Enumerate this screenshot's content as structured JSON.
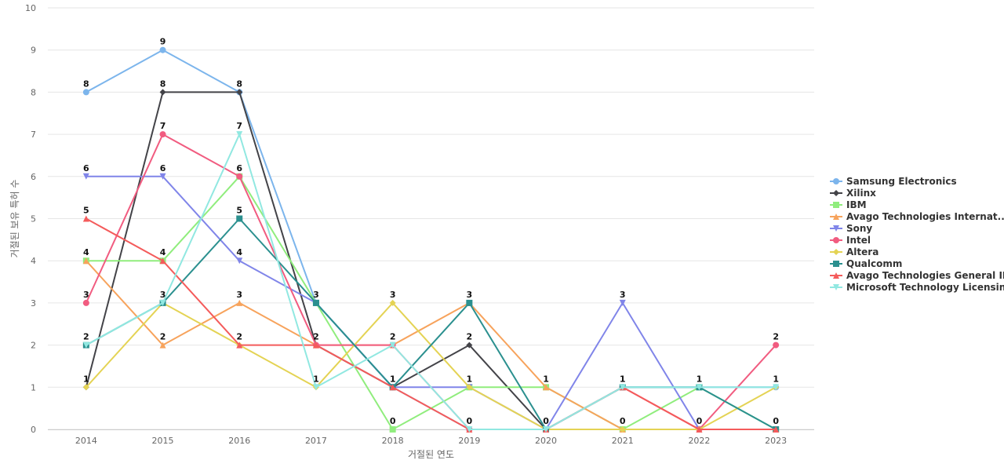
{
  "chart_data": {
    "type": "line",
    "xlabel": "거절된 연도",
    "ylabel": "거절된 보유 특허 수",
    "ylim": [
      0,
      10
    ],
    "yticks": [
      0,
      1,
      2,
      3,
      4,
      5,
      6,
      7,
      8,
      9,
      10
    ],
    "grid": true,
    "legend_position": "right",
    "x": [
      "2014",
      "2015",
      "2016",
      "2017",
      "2018",
      "2019",
      "2020",
      "2021",
      "2022",
      "2023"
    ],
    "series": [
      {
        "name": "Samsung Electronics",
        "legend_label": "Samsung Electronics",
        "color": "#7cb5ec",
        "marker": "circle",
        "values": [
          8,
          9,
          8,
          3,
          1,
          0,
          0,
          1,
          1,
          1
        ]
      },
      {
        "name": "Xilinx",
        "legend_label": "Xilinx",
        "color": "#434348",
        "marker": "diamond",
        "values": [
          1,
          8,
          8,
          2,
          1,
          2,
          0,
          0,
          0,
          0
        ]
      },
      {
        "name": "IBM",
        "legend_label": "IBM",
        "color": "#90ed7d",
        "marker": "square",
        "values": [
          4,
          4,
          6,
          3,
          0,
          1,
          1,
          0,
          1,
          0
        ]
      },
      {
        "name": "Avago Technologies International Sales",
        "legend_label": "Avago Technologies Internat...",
        "color": "#f7a35c",
        "marker": "triangle",
        "values": [
          4,
          2,
          3,
          2,
          2,
          3,
          1,
          0,
          0,
          0
        ]
      },
      {
        "name": "Sony",
        "legend_label": "Sony",
        "color": "#8085e9",
        "marker": "triangle-down",
        "values": [
          6,
          6,
          4,
          3,
          1,
          1,
          0,
          3,
          0,
          0
        ]
      },
      {
        "name": "Intel",
        "legend_label": "Intel",
        "color": "#f15c80",
        "marker": "circle",
        "values": [
          3,
          7,
          6,
          2,
          2,
          0,
          0,
          1,
          0,
          2
        ]
      },
      {
        "name": "Altera",
        "legend_label": "Altera",
        "color": "#e4d354",
        "marker": "diamond",
        "values": [
          1,
          3,
          2,
          1,
          3,
          1,
          0,
          0,
          0,
          1
        ]
      },
      {
        "name": "Qualcomm",
        "legend_label": "Qualcomm",
        "color": "#2b908f",
        "marker": "square",
        "values": [
          2,
          3,
          5,
          3,
          1,
          3,
          0,
          1,
          1,
          0
        ]
      },
      {
        "name": "Avago Technologies General IP",
        "legend_label": "Avago Technologies General IP",
        "color": "#f45b5b",
        "marker": "triangle",
        "values": [
          5,
          4,
          2,
          2,
          1,
          0,
          0,
          1,
          0,
          0
        ]
      },
      {
        "name": "Microsoft Technology Licensing",
        "legend_label": "Microsoft Technology Licensing",
        "color": "#91e8e1",
        "marker": "triangle-down",
        "values": [
          2,
          3,
          7,
          1,
          2,
          0,
          0,
          1,
          1,
          1
        ]
      }
    ],
    "data_labels": [
      {
        "x": "2014",
        "labels": [
          8,
          6,
          5,
          4,
          3,
          2,
          1
        ]
      },
      {
        "x": "2015",
        "labels": [
          9,
          8,
          7,
          6,
          4,
          3,
          2
        ]
      },
      {
        "x": "2016",
        "labels": [
          8,
          7,
          6,
          5,
          4,
          3,
          2
        ]
      },
      {
        "x": "2017",
        "labels": [
          3,
          2,
          1
        ]
      },
      {
        "x": "2018",
        "labels": [
          3,
          2,
          1,
          0
        ]
      },
      {
        "x": "2019",
        "labels": [
          3,
          2,
          1,
          0
        ]
      },
      {
        "x": "2020",
        "labels": [
          1,
          0
        ]
      },
      {
        "x": "2021",
        "labels": [
          3,
          1,
          0
        ]
      },
      {
        "x": "2022",
        "labels": [
          1,
          0
        ]
      },
      {
        "x": "2023",
        "labels": [
          2,
          1,
          0
        ]
      }
    ]
  }
}
